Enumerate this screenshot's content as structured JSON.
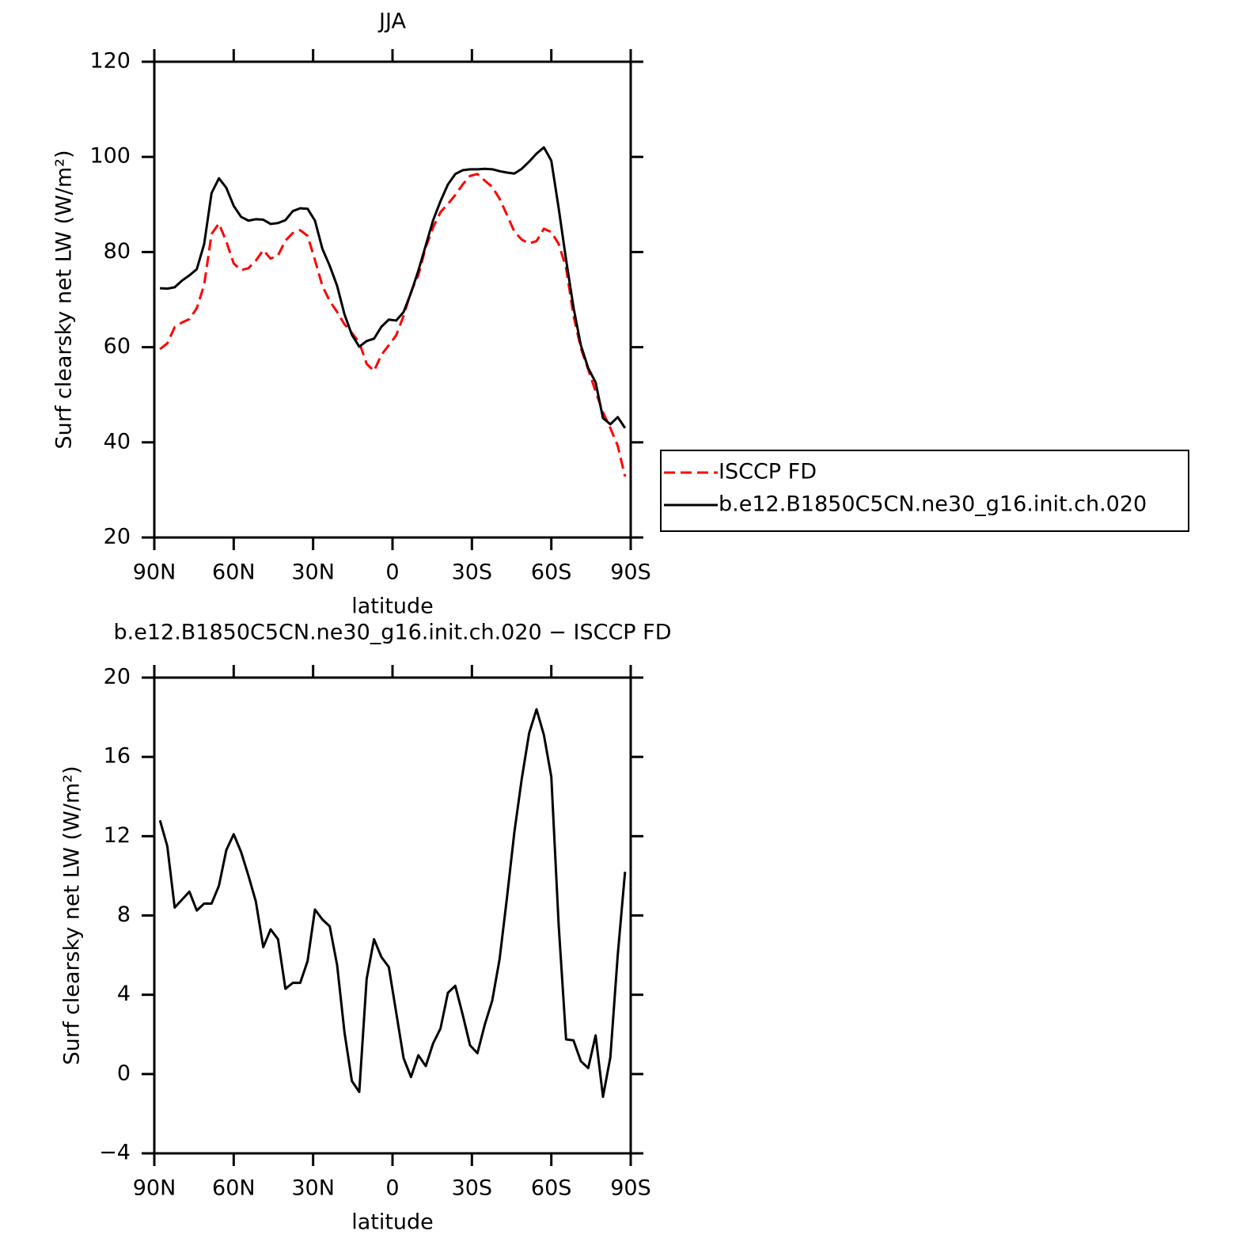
{
  "chart_data": [
    {
      "type": "line",
      "title": "JJA",
      "xlabel": "latitude",
      "ylabel": "Surf clearsky net LW (W/m²)",
      "x": [
        87.86,
        85.1,
        82.31,
        79.53,
        76.74,
        73.95,
        71.16,
        68.37,
        65.58,
        62.79,
        60.0,
        57.21,
        54.42,
        51.63,
        48.84,
        46.04,
        43.25,
        40.46,
        37.67,
        34.88,
        32.09,
        29.3,
        26.51,
        23.72,
        20.93,
        18.14,
        15.35,
        12.56,
        9.77,
        6.98,
        4.19,
        1.4,
        -1.4,
        -4.19,
        -6.98,
        -9.77,
        -12.56,
        -15.35,
        -18.14,
        -20.93,
        -23.72,
        -26.51,
        -29.3,
        -32.09,
        -34.88,
        -37.67,
        -40.46,
        -43.25,
        -46.04,
        -48.84,
        -51.63,
        -54.42,
        -57.21,
        -60.0,
        -62.79,
        -65.58,
        -68.37,
        -71.16,
        -73.95,
        -76.74,
        -79.53,
        -82.31,
        -85.1,
        -87.86
      ],
      "series": [
        {
          "name": "ISCCP FD",
          "color": "#ff0000",
          "line_style": "dashed",
          "values": [
            59.6,
            60.8,
            64.2,
            65.2,
            65.9,
            68.2,
            73.1,
            83.8,
            86.0,
            82.2,
            77.6,
            76.2,
            76.6,
            78.2,
            80.4,
            78.6,
            79.3,
            82.4,
            84.0,
            84.6,
            83.4,
            78.3,
            72.9,
            69.7,
            67.4,
            64.8,
            63.0,
            61.0,
            56.5,
            55.0,
            58.4,
            60.4,
            62.5,
            66.6,
            71.6,
            75.2,
            81.0,
            85.2,
            88.4,
            90.1,
            92.0,
            94.2,
            96.0,
            96.4,
            95.0,
            93.7,
            91.2,
            87.8,
            84.3,
            82.6,
            81.8,
            82.3,
            84.9,
            84.2,
            81.7,
            76.7,
            66.7,
            59.8,
            55.3,
            50.7,
            46.3,
            43.0,
            39.3,
            32.8
          ]
        },
        {
          "name": "b.e12.B1850C5CN.ne30_g16.init.ch.020",
          "color": "#000000",
          "line_style": "solid",
          "values": [
            72.4,
            72.3,
            72.6,
            74.0,
            75.1,
            76.4,
            81.7,
            92.4,
            95.5,
            93.5,
            89.7,
            87.4,
            86.6,
            86.9,
            86.8,
            85.9,
            86.1,
            86.7,
            88.6,
            89.2,
            89.1,
            86.6,
            80.7,
            77.1,
            72.9,
            66.9,
            62.6,
            60.1,
            61.3,
            61.8,
            64.3,
            65.8,
            65.6,
            67.4,
            71.4,
            76.1,
            81.4,
            86.7,
            90.7,
            94.2,
            96.4,
            97.2,
            97.4,
            97.4,
            97.5,
            97.4,
            97.0,
            96.7,
            96.5,
            97.5,
            99.0,
            100.7,
            102.0,
            99.2,
            89.2,
            78.4,
            68.4,
            60.4,
            55.6,
            52.6,
            45.1,
            43.8,
            45.3,
            43.0
          ]
        }
      ],
      "xlim": [
        90,
        -90
      ],
      "xticks": [
        {
          "value": 90,
          "label": "90N"
        },
        {
          "value": 60,
          "label": "60N"
        },
        {
          "value": 30,
          "label": "30N"
        },
        0,
        {
          "value": -30,
          "label": "30S"
        },
        {
          "value": -60,
          "label": "60S"
        },
        {
          "value": -90,
          "label": "90S"
        }
      ],
      "ylim": [
        20,
        120
      ],
      "yticks": [
        20,
        40,
        60,
        80,
        100,
        120
      ],
      "legend": "right"
    },
    {
      "type": "line",
      "title": "b.e12.B1850C5CN.ne30_g16.init.ch.020 − ISCCP FD",
      "xlabel": "latitude",
      "ylabel": "Surf clearsky net LW (W/m²)",
      "x": [
        87.86,
        85.1,
        82.31,
        79.53,
        76.74,
        73.95,
        71.16,
        68.37,
        65.58,
        62.79,
        60.0,
        57.21,
        54.42,
        51.63,
        48.84,
        46.04,
        43.25,
        40.46,
        37.67,
        34.88,
        32.09,
        29.3,
        26.51,
        23.72,
        20.93,
        18.14,
        15.35,
        12.56,
        9.77,
        6.98,
        4.19,
        1.4,
        -1.4,
        -4.19,
        -6.98,
        -9.77,
        -12.56,
        -15.35,
        -18.14,
        -20.93,
        -23.72,
        -26.51,
        -29.3,
        -32.09,
        -34.88,
        -37.67,
        -40.46,
        -43.25,
        -46.04,
        -48.84,
        -51.63,
        -54.42,
        -57.21,
        -60.0,
        -62.79,
        -65.58,
        -68.37,
        -71.16,
        -73.95,
        -76.74,
        -79.53,
        -82.31,
        -85.1,
        -87.86
      ],
      "values": [
        12.8,
        11.5,
        8.4,
        8.8,
        9.2,
        8.25,
        8.6,
        8.6,
        9.5,
        11.3,
        12.1,
        11.2,
        10.0,
        8.7,
        6.4,
        7.3,
        6.8,
        4.3,
        4.6,
        4.6,
        5.7,
        8.3,
        7.8,
        7.45,
        5.5,
        2.1,
        -0.35,
        -0.9,
        4.8,
        6.8,
        5.9,
        5.4,
        3.1,
        0.8,
        -0.15,
        0.95,
        0.4,
        1.55,
        2.3,
        4.1,
        4.45,
        3.0,
        1.45,
        1.05,
        2.5,
        3.7,
        5.8,
        8.9,
        12.2,
        14.9,
        17.2,
        18.4,
        17.1,
        15.0,
        7.5,
        1.75,
        1.7,
        0.65,
        0.3,
        1.95,
        -1.15,
        0.85,
        6.0,
        10.2
      ],
      "color": "#000000",
      "line_style": "solid",
      "xlim": [
        90,
        -90
      ],
      "xticks": [
        {
          "value": 90,
          "label": "90N"
        },
        {
          "value": 60,
          "label": "60N"
        },
        {
          "value": 30,
          "label": "30N"
        },
        0,
        {
          "value": -30,
          "label": "30S"
        },
        {
          "value": -60,
          "label": "60S"
        },
        {
          "value": -90,
          "label": "90S"
        }
      ],
      "ylim": [
        -4,
        20
      ],
      "yticks": [
        {
          "value": -4,
          "label": "−4"
        },
        0,
        4,
        8,
        12,
        16,
        20
      ]
    }
  ]
}
